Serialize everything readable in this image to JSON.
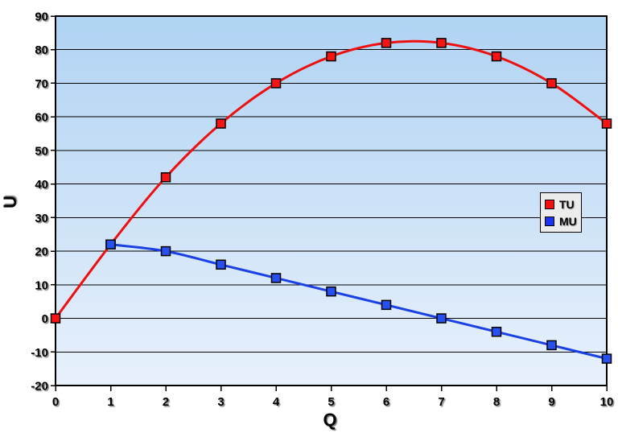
{
  "page": {
    "background_color": "#FFFFFF"
  },
  "legend": {
    "items": [
      {
        "label": "TU",
        "color": "#F01010"
      },
      {
        "label": "MU",
        "color": "#1C35EC"
      }
    ]
  },
  "chart_data": {
    "type": "line",
    "title": "",
    "xlabel": "Q",
    "ylabel": "U",
    "x": [
      0,
      1,
      2,
      3,
      4,
      5,
      6,
      7,
      8,
      9,
      10
    ],
    "series": [
      {
        "name": "TU",
        "color": "#EE1010",
        "marker_color": "#F81414",
        "marker_shape": "square",
        "values": [
          0,
          22,
          42,
          58,
          70,
          78,
          82,
          82,
          78,
          70,
          58
        ]
      },
      {
        "name": "MU",
        "color": "#1B40E4",
        "marker_color": "#2750F0",
        "marker_shape": "square",
        "values": [
          null,
          22,
          20,
          16,
          12,
          8,
          4,
          0,
          -4,
          -8,
          -12
        ]
      }
    ],
    "xlim": [
      0,
      10
    ],
    "ylim": [
      -20,
      90
    ],
    "xtick_step": 1,
    "ytick_step": 10,
    "tick_labels_x": [
      0,
      1,
      2,
      3,
      4,
      5,
      6,
      7,
      8,
      9,
      10
    ],
    "tick_labels_y": [
      90,
      80,
      70,
      60,
      50,
      40,
      30,
      20,
      10,
      0,
      -10,
      -20
    ],
    "grid": "horizontal",
    "gridline_color": "#000000",
    "border_color": "#000000",
    "plot_bg_gradient_top": "#B0D3F3",
    "plot_bg_gradient_bottom": "#E8F1FC",
    "legend_position": "right-middle"
  }
}
